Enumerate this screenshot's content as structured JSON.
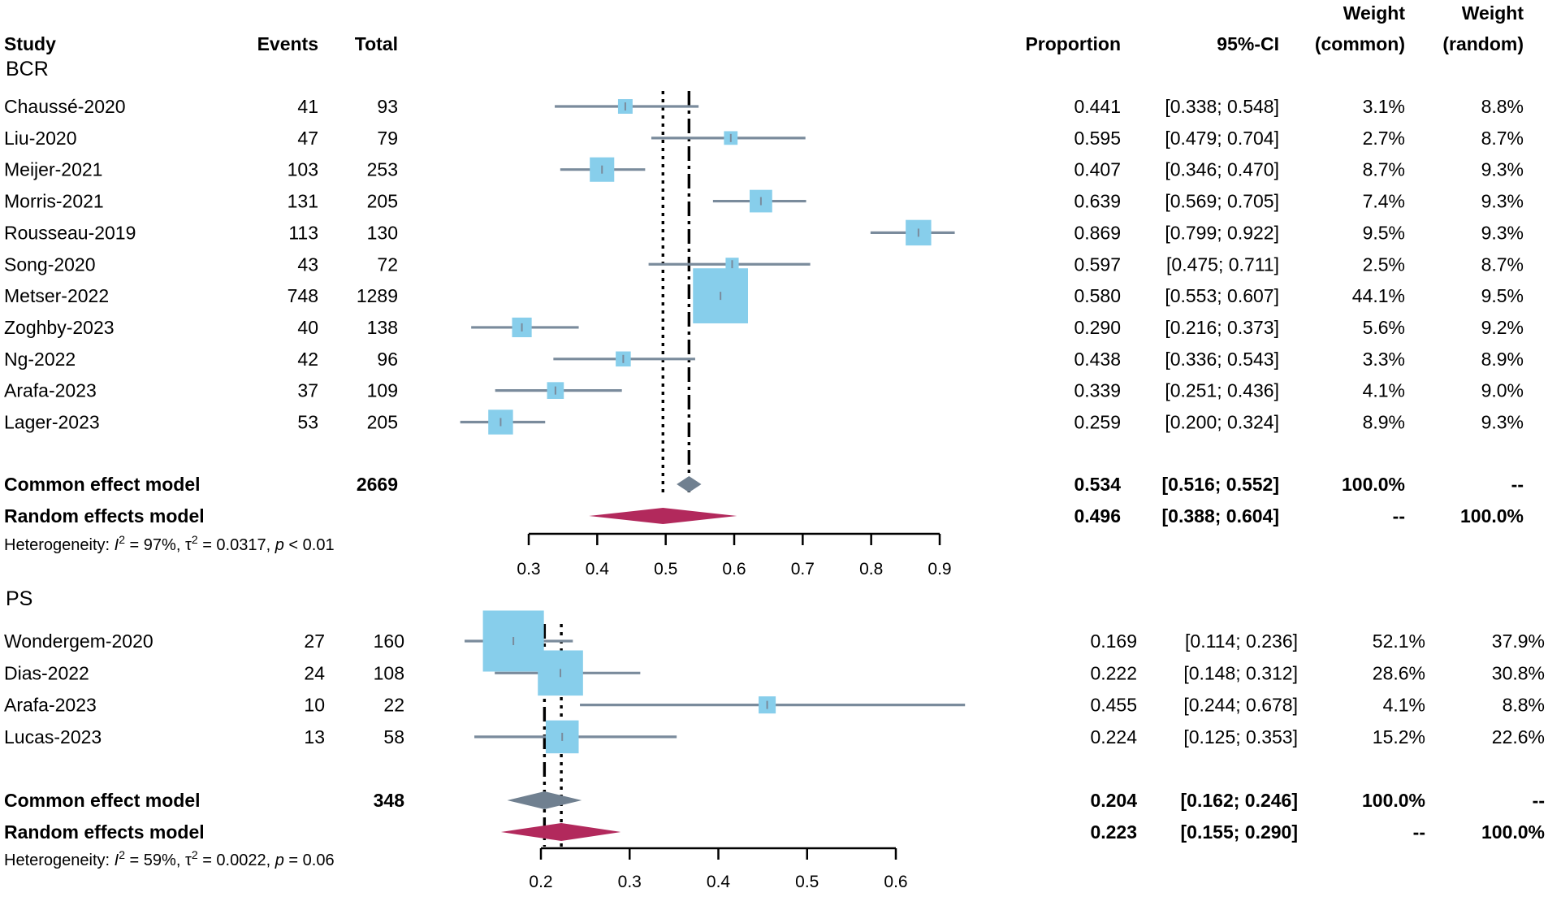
{
  "header": {
    "study": "Study",
    "events": "Events",
    "total": "Total",
    "proportion": "Proportion",
    "ci": "95%-CI",
    "weight_line1": "Weight",
    "weight_common_line2": "(common)",
    "weight_random_line2": "(random)"
  },
  "colors": {
    "box": "#87ceeb",
    "ci_line": "#7a8b9c",
    "common_diamond": "#708090",
    "random_diamond": "#b2295c"
  },
  "chart_data": [
    {
      "type": "forest",
      "subgroup": "BCR",
      "xlim": [
        0.3,
        0.9
      ],
      "ticks": [
        0.3,
        0.4,
        0.5,
        0.6,
        0.7,
        0.8,
        0.9
      ],
      "tick_labels": [
        "0.3",
        "0.4",
        "0.5",
        "0.6",
        "0.7",
        "0.8",
        "0.9"
      ],
      "studies": [
        {
          "name": "Chaussé-2020",
          "events": "41",
          "total": "93",
          "prop": 0.441,
          "lower": 0.338,
          "upper": 0.548,
          "prop_text": "0.441",
          "ci_text": "[0.338; 0.548]",
          "w_common": "3.1%",
          "w_random": "8.8%",
          "wc": 3.1
        },
        {
          "name": "Liu-2020",
          "events": "47",
          "total": "79",
          "prop": 0.595,
          "lower": 0.479,
          "upper": 0.704,
          "prop_text": "0.595",
          "ci_text": "[0.479; 0.704]",
          "w_common": "2.7%",
          "w_random": "8.7%",
          "wc": 2.7
        },
        {
          "name": "Meijer-2021",
          "events": "103",
          "total": "253",
          "prop": 0.407,
          "lower": 0.346,
          "upper": 0.47,
          "prop_text": "0.407",
          "ci_text": "[0.346; 0.470]",
          "w_common": "8.7%",
          "w_random": "9.3%",
          "wc": 8.7
        },
        {
          "name": "Morris-2021",
          "events": "131",
          "total": "205",
          "prop": 0.639,
          "lower": 0.569,
          "upper": 0.705,
          "prop_text": "0.639",
          "ci_text": "[0.569; 0.705]",
          "w_common": "7.4%",
          "w_random": "9.3%",
          "wc": 7.4
        },
        {
          "name": "Rousseau-2019",
          "events": "113",
          "total": "130",
          "prop": 0.869,
          "lower": 0.799,
          "upper": 0.922,
          "prop_text": "0.869",
          "ci_text": "[0.799; 0.922]",
          "w_common": "9.5%",
          "w_random": "9.3%",
          "wc": 9.5
        },
        {
          "name": "Song-2020",
          "events": "43",
          "total": "72",
          "prop": 0.597,
          "lower": 0.475,
          "upper": 0.711,
          "prop_text": "0.597",
          "ci_text": "[0.475; 0.711]",
          "w_common": "2.5%",
          "w_random": "8.7%",
          "wc": 2.5
        },
        {
          "name": "Metser-2022",
          "events": "748",
          "total": "1289",
          "prop": 0.58,
          "lower": 0.553,
          "upper": 0.607,
          "prop_text": "0.580",
          "ci_text": "[0.553; 0.607]",
          "w_common": "44.1%",
          "w_random": "9.5%",
          "wc": 44.1
        },
        {
          "name": "Zoghby-2023",
          "events": "40",
          "total": "138",
          "prop": 0.29,
          "lower": 0.216,
          "upper": 0.373,
          "prop_text": "0.290",
          "ci_text": "[0.216; 0.373]",
          "w_common": "5.6%",
          "w_random": "9.2%",
          "wc": 5.6
        },
        {
          "name": "Ng-2022",
          "events": "42",
          "total": "96",
          "prop": 0.438,
          "lower": 0.336,
          "upper": 0.543,
          "prop_text": "0.438",
          "ci_text": "[0.336; 0.543]",
          "w_common": "3.3%",
          "w_random": "8.9%",
          "wc": 3.3
        },
        {
          "name": "Arafa-2023",
          "events": "37",
          "total": "109",
          "prop": 0.339,
          "lower": 0.251,
          "upper": 0.436,
          "prop_text": "0.339",
          "ci_text": "[0.251; 0.436]",
          "w_common": "4.1%",
          "w_random": "9.0%",
          "wc": 4.1
        },
        {
          "name": "Lager-2023",
          "events": "53",
          "total": "205",
          "prop": 0.259,
          "lower": 0.2,
          "upper": 0.324,
          "prop_text": "0.259",
          "ci_text": "[0.200; 0.324]",
          "w_common": "8.9%",
          "w_random": "9.3%",
          "wc": 8.9
        }
      ],
      "common": {
        "label": "Common effect model",
        "total": "2669",
        "prop": 0.534,
        "lower": 0.516,
        "upper": 0.552,
        "prop_text": "0.534",
        "ci_text": "[0.516; 0.552]",
        "w_common": "100.0%",
        "w_random": "--"
      },
      "random": {
        "label": "Random effects model",
        "prop": 0.496,
        "lower": 0.388,
        "upper": 0.604,
        "prop_text": "0.496",
        "ci_text": "[0.388; 0.604]",
        "w_common": "--",
        "w_random": "100.0%"
      },
      "heterogeneity": {
        "prefix": "Heterogeneity: ",
        "I2_symbol": "I",
        "I2_exp": "2",
        "I2_value": " = 97%, ",
        "tau2_symbol": "τ",
        "tau2_exp": "2",
        "tau2_value": " = 0.0317, ",
        "p_symbol": "p",
        "p_value": " < 0.01"
      }
    },
    {
      "type": "forest",
      "subgroup": "PS",
      "xlim": [
        0.2,
        0.6
      ],
      "ticks": [
        0.2,
        0.3,
        0.4,
        0.5,
        0.6
      ],
      "tick_labels": [
        "0.2",
        "0.3",
        "0.4",
        "0.5",
        "0.6"
      ],
      "studies": [
        {
          "name": "Wondergem-2020",
          "events": "27",
          "total": "160",
          "prop": 0.169,
          "lower": 0.114,
          "upper": 0.236,
          "prop_text": "0.169",
          "ci_text": "[0.114; 0.236]",
          "w_common": "52.1%",
          "w_random": "37.9%",
          "wc": 52.1
        },
        {
          "name": "Dias-2022",
          "events": "24",
          "total": "108",
          "prop": 0.222,
          "lower": 0.148,
          "upper": 0.312,
          "prop_text": "0.222",
          "ci_text": "[0.148; 0.312]",
          "w_common": "28.6%",
          "w_random": "30.8%",
          "wc": 28.6
        },
        {
          "name": "Arafa-2023",
          "events": "10",
          "total": "22",
          "prop": 0.455,
          "lower": 0.244,
          "upper": 0.678,
          "prop_text": "0.455",
          "ci_text": "[0.244; 0.678]",
          "w_common": "4.1%",
          "w_random": "8.8%",
          "wc": 4.1
        },
        {
          "name": "Lucas-2023",
          "events": "13",
          "total": "58",
          "prop": 0.224,
          "lower": 0.125,
          "upper": 0.353,
          "prop_text": "0.224",
          "ci_text": "[0.125; 0.353]",
          "w_common": "15.2%",
          "w_random": "22.6%",
          "wc": 15.2
        }
      ],
      "common": {
        "label": "Common effect model",
        "total": "348",
        "prop": 0.204,
        "lower": 0.162,
        "upper": 0.246,
        "prop_text": "0.204",
        "ci_text": "[0.162; 0.246]",
        "w_common": "100.0%",
        "w_random": "--"
      },
      "random": {
        "label": "Random effects model",
        "prop": 0.223,
        "lower": 0.155,
        "upper": 0.29,
        "prop_text": "0.223",
        "ci_text": "[0.155; 0.290]",
        "w_common": "--",
        "w_random": "100.0%"
      },
      "heterogeneity": {
        "prefix": "Heterogeneity: ",
        "I2_symbol": "I",
        "I2_exp": "2",
        "I2_value": " = 59%, ",
        "tau2_symbol": "τ",
        "tau2_exp": "2",
        "tau2_value": " = 0.0022, ",
        "p_symbol": "p",
        "p_value": " = 0.06"
      }
    }
  ]
}
